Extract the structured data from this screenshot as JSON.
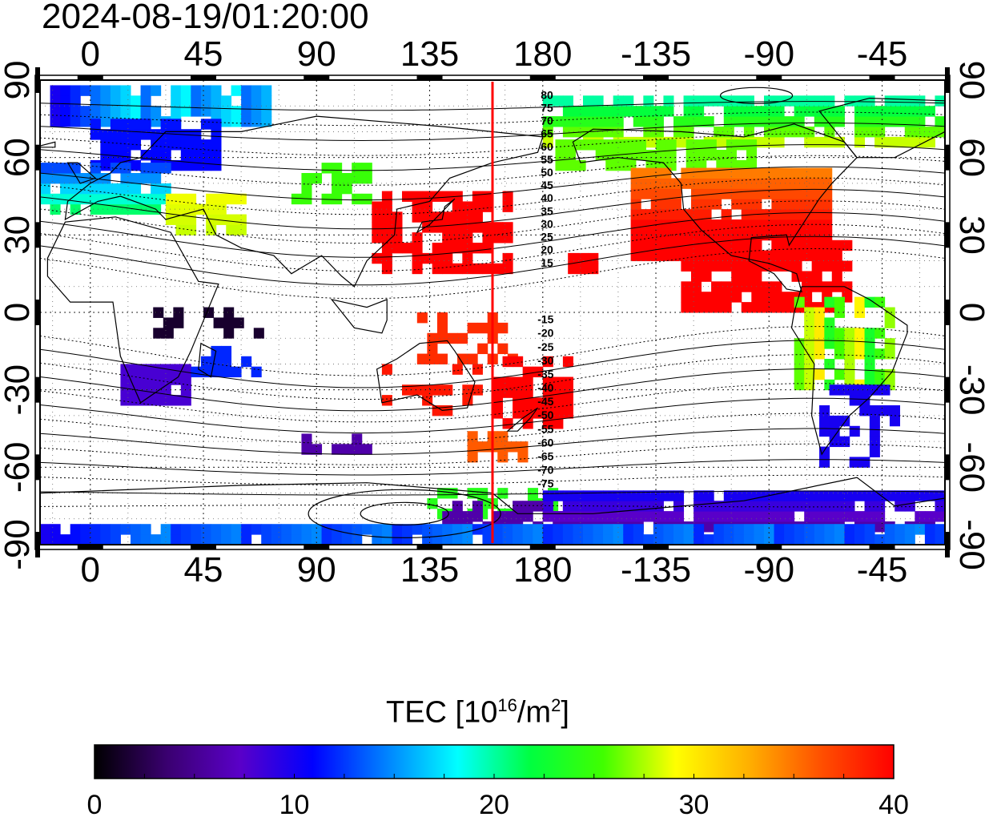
{
  "timestamp": "2024-08-19/01:20:00",
  "map": {
    "projection": "equirectangular",
    "lon_center": 180,
    "x_tick_labels": [
      "0",
      "45",
      "90",
      "135",
      "180",
      "-135",
      "-90",
      "-45"
    ],
    "y_tick_labels": [
      "90",
      "60",
      "30",
      "0",
      "-30",
      "-60",
      "-90"
    ],
    "x_range": [
      -20,
      340
    ],
    "y_range": [
      -90,
      90
    ],
    "grid": "dotted",
    "terminator_lon": 160,
    "terminator_color": "#ff0000",
    "contour_labels_north": [
      "80",
      "75",
      "70",
      "65",
      "60",
      "55",
      "50",
      "45",
      "40",
      "35",
      "30",
      "25",
      "20",
      "15"
    ],
    "contour_labels_south": [
      "-15",
      "-20",
      "-25",
      "-30",
      "-35",
      "-40",
      "-45",
      "-50",
      "-55",
      "-60",
      "-65",
      "-70",
      "-75"
    ]
  },
  "colorbar": {
    "title_prefix": "TEC  [10",
    "title_exp1": "16",
    "title_mid": "/m",
    "title_exp2": "2",
    "title_suffix": "]",
    "min": 0,
    "max": 40,
    "tick_labels": [
      "0",
      "10",
      "20",
      "30",
      "40"
    ],
    "colors": [
      "#000000",
      "#3a0070",
      "#5a00c8",
      "#0000ff",
      "#0080ff",
      "#00ffff",
      "#00ff40",
      "#40ff00",
      "#ffff00",
      "#ffb000",
      "#ff5000",
      "#ff0000"
    ]
  }
}
